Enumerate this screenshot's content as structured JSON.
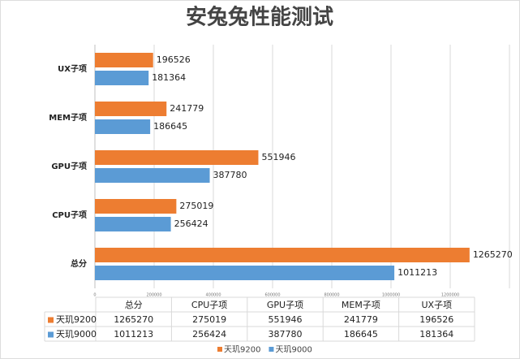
{
  "chart_data": {
    "type": "bar",
    "orientation": "horizontal",
    "title": "安兔兔性能测试",
    "categories": [
      "总分",
      "CPU子项",
      "GPU子项",
      "MEM子项",
      "UX子项"
    ],
    "series": [
      {
        "name": "天玑9200",
        "color": "#ED7D31",
        "values": [
          1265270,
          275019,
          551946,
          241779,
          196526
        ]
      },
      {
        "name": "天玑9000",
        "color": "#5B9BD5",
        "values": [
          1011213,
          256424,
          387780,
          186645,
          181364
        ]
      }
    ],
    "xlim": [
      0,
      1400000
    ],
    "xticks": [
      0,
      200000,
      400000,
      600000,
      800000,
      1000000,
      1200000
    ],
    "grid": true,
    "legend": "bottom",
    "data_table": true
  }
}
